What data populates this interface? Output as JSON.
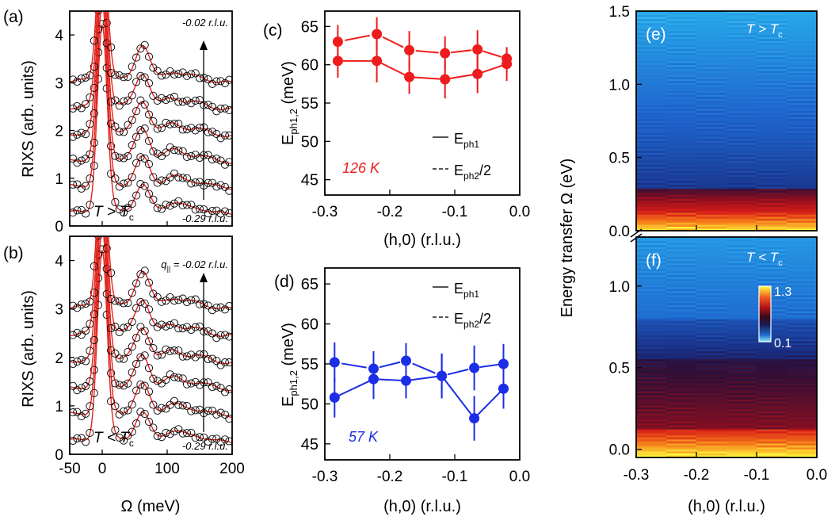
{
  "figure": {
    "shared_xlabel_rixs": "Ω (meV)",
    "shared_ylabel_rixs": "RIXS (arb. units)",
    "shared_xlabel_q": "(h,0) (r.l.u.)",
    "ylabel_energy_map": "Energy transfer Ω (eV)",
    "ylabel_phonon_main": "E",
    "ylabel_phonon_sub": "ph1,2",
    "ylabel_phonon_unit": " (meV)"
  },
  "chart_data": [
    {
      "panel": "a",
      "type": "line",
      "label": "(a)",
      "title": "",
      "condition_text": "T > T",
      "condition_sub": "c",
      "top_annotation": "-0.02 r.l.u.",
      "bottom_annotation": "-0.29 r.l.u.",
      "xlabel": "Ω (meV)",
      "ylabel": "RIXS (arb. units)",
      "xlim": [
        -50,
        200
      ],
      "ylim": [
        0,
        4.5
      ],
      "xticks": [
        "-50",
        "0",
        "100",
        "200"
      ],
      "yticks": [
        "0",
        "1",
        "2",
        "3",
        "4"
      ],
      "offsets": [
        0.0,
        0.55,
        1.1,
        1.65,
        2.2,
        2.75
      ],
      "series_note": "6 spectra, circles = data, red line = fit"
    },
    {
      "panel": "b",
      "type": "line",
      "label": "(b)",
      "condition_text": "T < T",
      "condition_sub": "c",
      "top_annotation_prefix": "q",
      "top_annotation_sub": "||",
      "top_annotation": " = -0.02 r.l.u.",
      "bottom_annotation": "-0.29 r.l.u.",
      "xlabel": "Ω (meV)",
      "ylabel": "RIXS (arb. units)",
      "xlim": [
        -50,
        200
      ],
      "ylim": [
        0,
        4.5
      ],
      "xticks": [
        "-50",
        "0",
        "100",
        "200"
      ],
      "yticks": [
        "0",
        "1",
        "2",
        "3",
        "4"
      ],
      "offsets": [
        0.0,
        0.55,
        1.1,
        1.65,
        2.2,
        2.75
      ],
      "series_note": "6 spectra, circles = data, red line = fit"
    },
    {
      "panel": "c",
      "type": "line",
      "label": "(c)",
      "temperature": "126 K",
      "color": "#ee1c1c",
      "xlim": [
        -0.3,
        0.0
      ],
      "ylim": [
        43,
        67
      ],
      "xticks": [
        "-0.3",
        "-0.2",
        "-0.1",
        "0.0"
      ],
      "yticks": [
        "45",
        "50",
        "55",
        "60",
        "65"
      ],
      "legend": [
        {
          "name": "E",
          "sub": "ph1",
          "suffix": "",
          "style": "solid"
        },
        {
          "name": "E",
          "sub": "ph2",
          "suffix": "/2",
          "style": "dashed"
        }
      ],
      "series": [
        {
          "name": "Eph1",
          "x": [
            -0.28,
            -0.22,
            -0.17,
            -0.115,
            -0.065,
            -0.02
          ],
          "values": [
            60.5,
            60.5,
            58.4,
            58.1,
            58.8,
            60.1
          ],
          "err": [
            2.2,
            2.8,
            2.2,
            2.5,
            2.5,
            2.2
          ]
        },
        {
          "name": "Eph2/2",
          "x": [
            -0.28,
            -0.22,
            -0.17,
            -0.115,
            -0.065,
            -0.02
          ],
          "values": [
            63.0,
            64.0,
            61.9,
            61.5,
            62.0,
            60.8
          ],
          "err": [
            2.2,
            2.2,
            2.5,
            2.2,
            2.5,
            1.5
          ]
        }
      ]
    },
    {
      "panel": "d",
      "type": "line",
      "label": "(d)",
      "temperature": "57 K",
      "color": "#1c2de6",
      "xlim": [
        -0.3,
        0.0
      ],
      "ylim": [
        43,
        67
      ],
      "xticks": [
        "-0.3",
        "-0.2",
        "-0.1",
        "0.0"
      ],
      "yticks": [
        "45",
        "50",
        "55",
        "60",
        "65"
      ],
      "legend": [
        {
          "name": "E",
          "sub": "ph1",
          "suffix": "",
          "style": "solid"
        },
        {
          "name": "E",
          "sub": "ph2",
          "suffix": "/2",
          "style": "dashed"
        }
      ],
      "series": [
        {
          "name": "Eph1",
          "x": [
            -0.285,
            -0.225,
            -0.175,
            -0.12,
            -0.07,
            -0.025
          ],
          "values": [
            50.8,
            53.1,
            52.9,
            53.5,
            48.2,
            51.9
          ],
          "err": [
            2.5,
            2.5,
            2.2,
            2.8,
            2.8,
            2.5
          ]
        },
        {
          "name": "Eph2/2",
          "x": [
            -0.285,
            -0.225,
            -0.175,
            -0.12,
            -0.07,
            -0.025
          ],
          "values": [
            55.2,
            54.4,
            55.4,
            53.5,
            54.5,
            55.0
          ],
          "err": [
            2.5,
            2.2,
            2.2,
            2.8,
            2.8,
            2.5
          ]
        }
      ]
    },
    {
      "panel": "e",
      "type": "heatmap",
      "label": "(e)",
      "condition_text": "T > T",
      "condition_sub": "c",
      "xlim": [
        -0.3,
        0.0
      ],
      "ylim": [
        0.0,
        1.5
      ],
      "xticks": [
        "-0.3",
        "-0.2",
        "-0.1",
        "0.0"
      ],
      "yticks": [
        "0.0",
        "0.5",
        "1.0",
        "1.5"
      ],
      "ylabel": "Energy transfer Ω (eV)"
    },
    {
      "panel": "f",
      "type": "heatmap",
      "label": "(f)",
      "condition_text": "T < T",
      "condition_sub": "c",
      "xlim": [
        -0.3,
        0.0
      ],
      "ylim": [
        -0.05,
        1.3
      ],
      "xticks": [
        "-0.3",
        "-0.2",
        "-0.1",
        "0.0"
      ],
      "yticks": [
        "0.0",
        "0.5",
        "1.0"
      ],
      "colorbar": {
        "max": "1.3",
        "min": "0.1"
      },
      "xlabel": "(h,0) (r.l.u.)"
    }
  ]
}
